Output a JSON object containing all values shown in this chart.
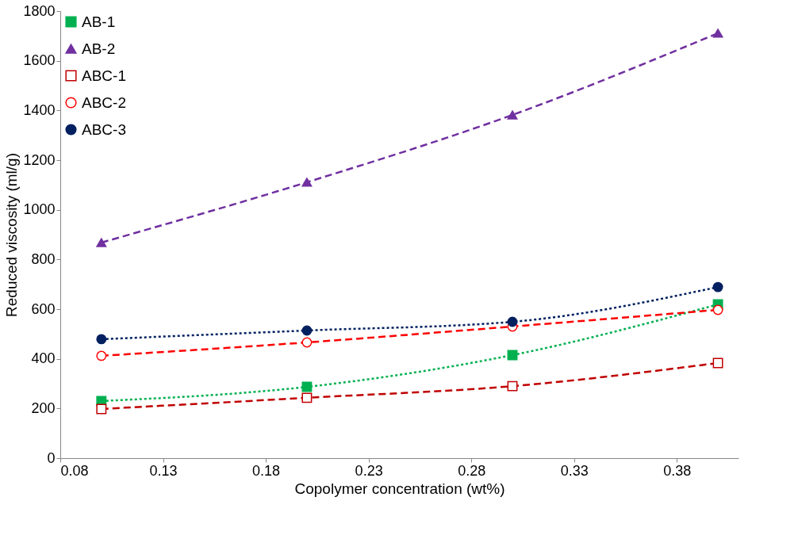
{
  "chart_data": {
    "type": "line",
    "xlabel": "Copolymer concentration (wt%)",
    "ylabel": "Reduced viscosity (ml/g)",
    "x": [
      0.1,
      0.2,
      0.3,
      0.4
    ],
    "series": [
      {
        "name": "AB-1",
        "color": "#00b050",
        "marker": "square",
        "line_style": "dotted",
        "values": [
          230,
          287,
          415,
          619
        ]
      },
      {
        "name": "AB-2",
        "color": "#7030a0",
        "marker": "triangle",
        "line_style": "dashed",
        "values": [
          868,
          1111,
          1382,
          1711
        ]
      },
      {
        "name": "ABC-1",
        "color": "#c00000",
        "marker": "square-open",
        "line_style": "dashed",
        "values": [
          198,
          243,
          290,
          383
        ]
      },
      {
        "name": "ABC-2",
        "color": "#ff0000",
        "marker": "circle-open",
        "line_style": "dashed",
        "values": [
          412,
          466,
          530,
          597
        ]
      },
      {
        "name": "ABC-3",
        "color": "#002060",
        "marker": "circle",
        "line_style": "dotted",
        "values": [
          479,
          514,
          549,
          689
        ]
      }
    ],
    "xlim": [
      0.08,
      0.41
    ],
    "xticks": [
      0.08,
      0.13,
      0.18,
      0.23,
      0.28,
      0.33,
      0.38
    ],
    "ylim": [
      0,
      1800
    ],
    "yticks": [
      0,
      200,
      400,
      600,
      800,
      1000,
      1200,
      1400,
      1600,
      1800
    ],
    "legend": "top left",
    "grid": false
  }
}
